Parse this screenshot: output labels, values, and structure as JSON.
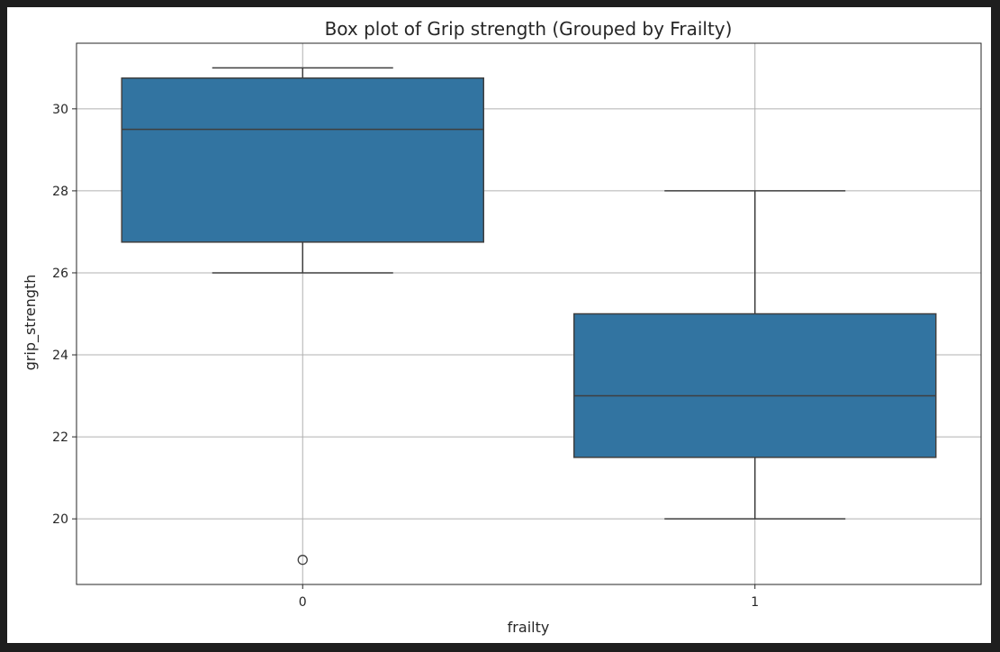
{
  "chart_data": {
    "type": "box",
    "title": "Box plot of Grip strength (Grouped by Frailty)",
    "xlabel": "frailty",
    "ylabel": "grip_strength",
    "categories": [
      "0",
      "1"
    ],
    "ylim": [
      18.4,
      31.6
    ],
    "yticks": [
      20,
      22,
      24,
      26,
      28,
      30
    ],
    "ytick_labels": [
      "20",
      "22",
      "24",
      "26",
      "28",
      "30"
    ],
    "grid": true,
    "box_color": "#3274a1",
    "line_color": "#3f3f3f",
    "boxes": [
      {
        "category": "0",
        "whisker_low": 26,
        "q1": 26.75,
        "median": 29.5,
        "q3": 30.75,
        "whisker_high": 31,
        "outliers": [
          19
        ]
      },
      {
        "category": "1",
        "whisker_low": 20,
        "q1": 21.5,
        "median": 23,
        "q3": 25,
        "whisker_high": 28,
        "outliers": []
      }
    ]
  }
}
